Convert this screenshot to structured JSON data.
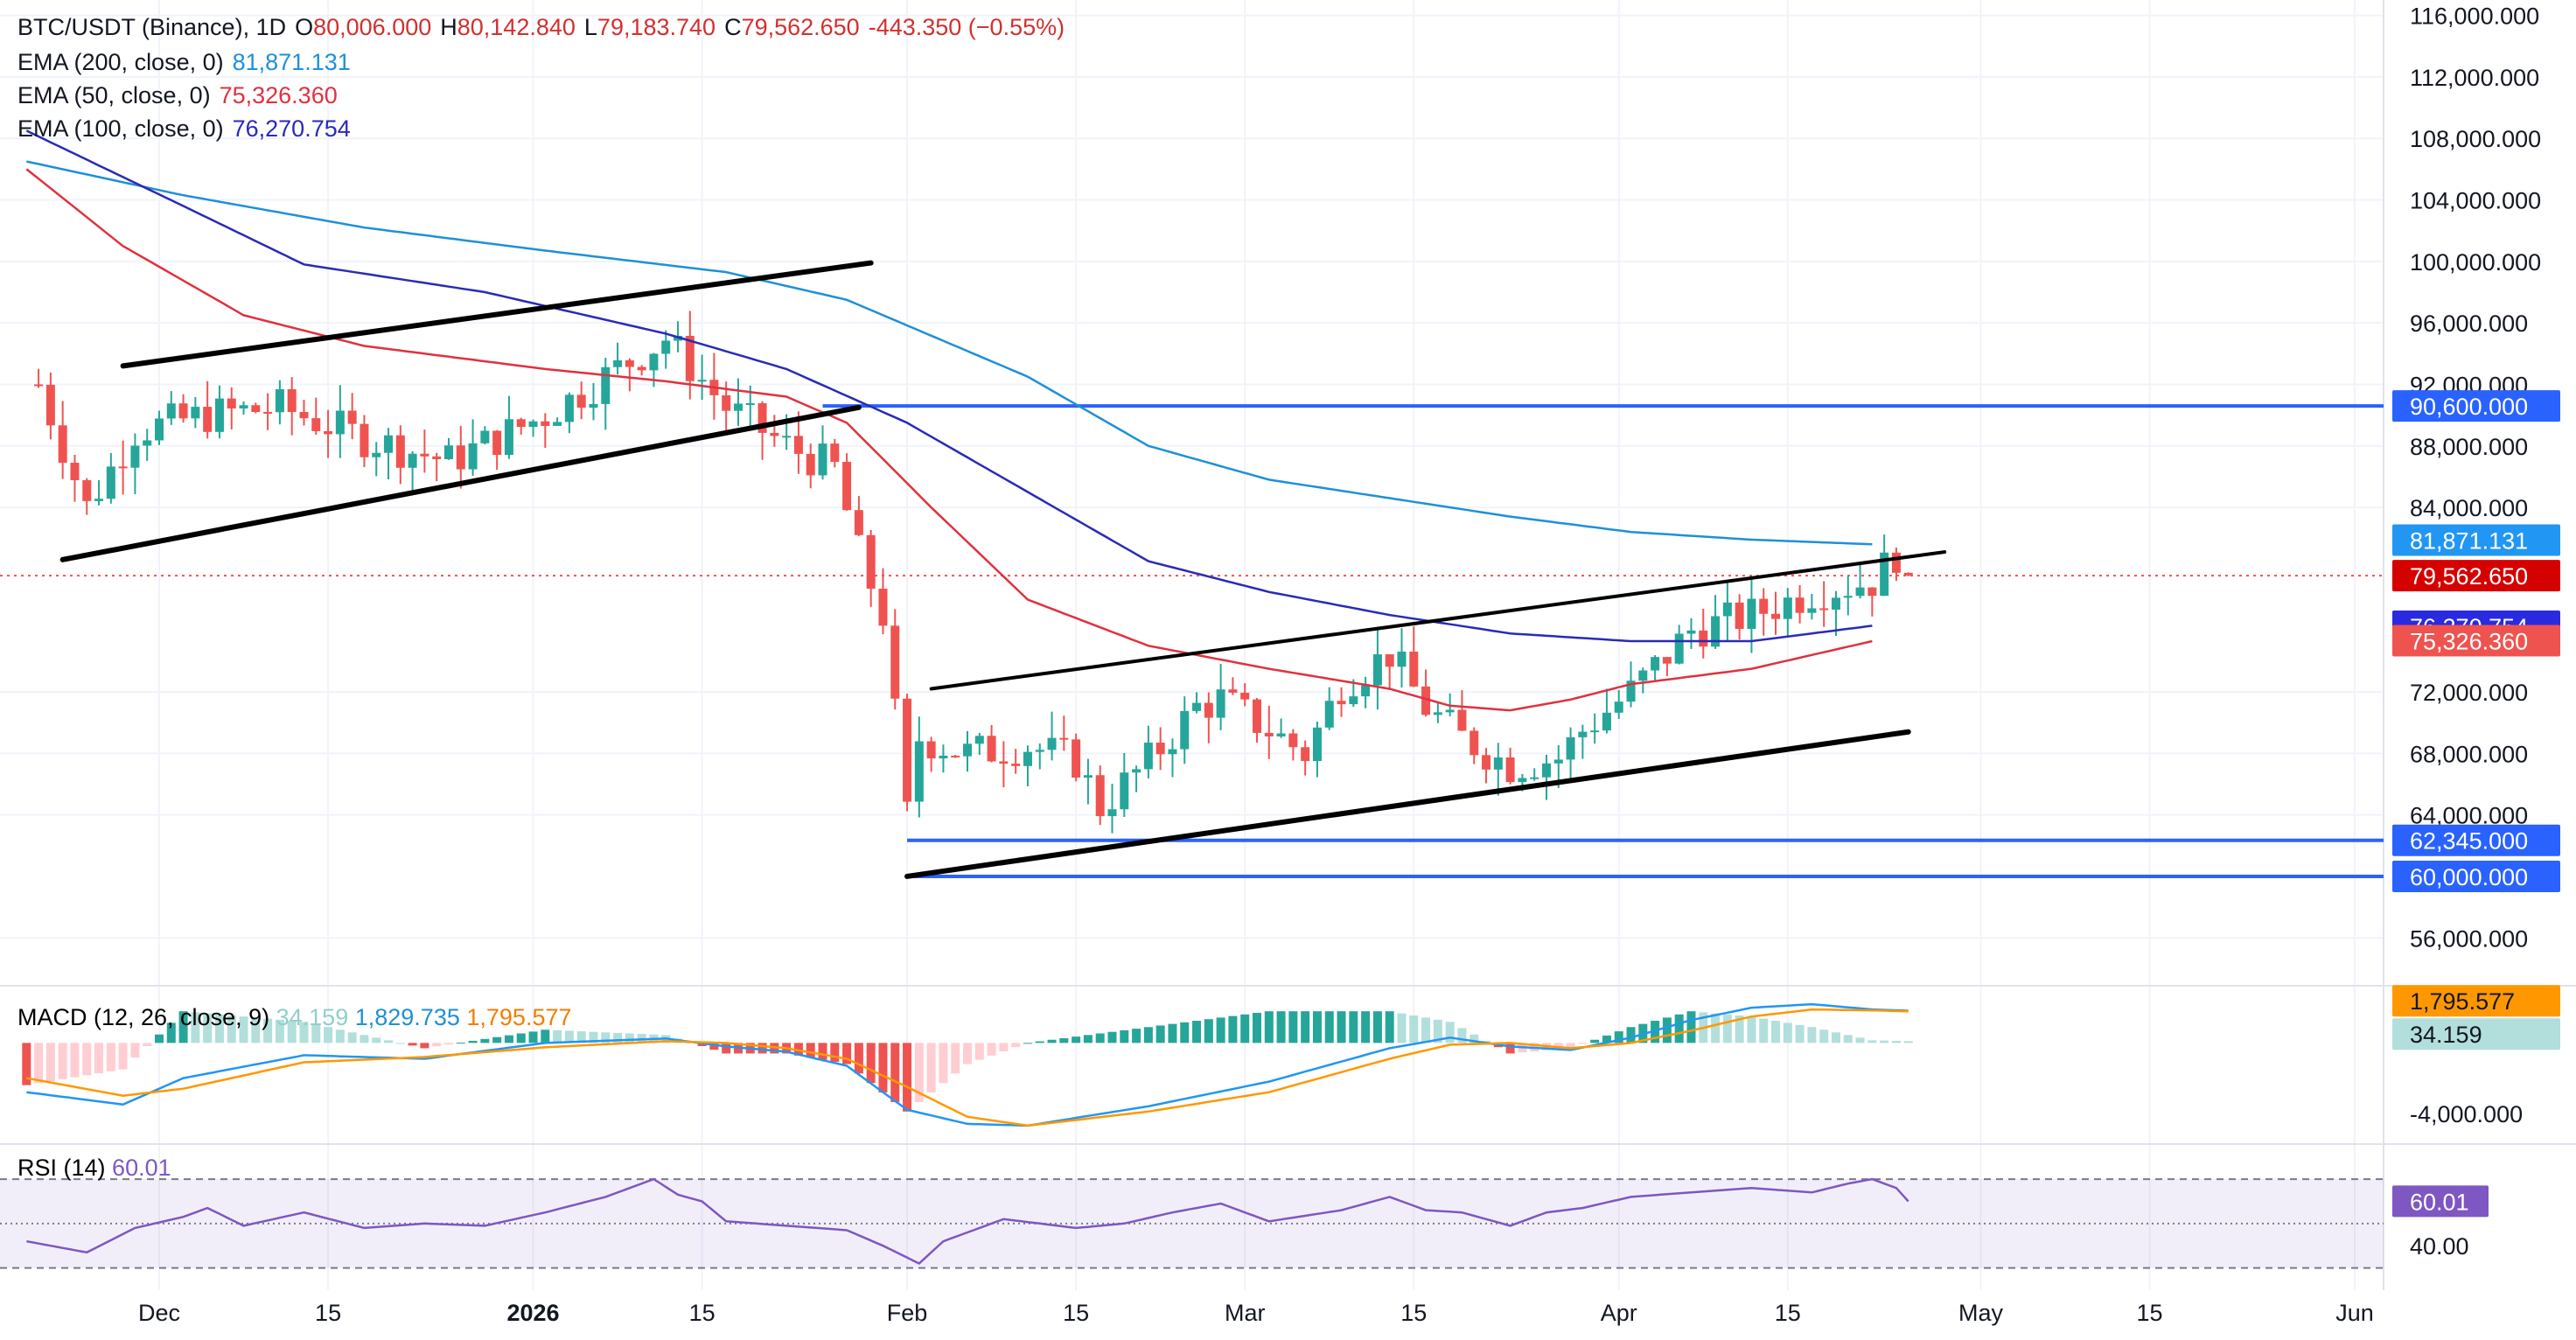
{
  "header": {
    "symbol": "BTC/USDT (Binance), 1D",
    "open_label": "O",
    "open": "80,006.000",
    "high_label": "H",
    "high": "80,142.840",
    "low_label": "L",
    "low": "79,183.740",
    "close_label": "C",
    "close": "79,562.650",
    "change": "-443.350 (−0.55%)"
  },
  "indicators": [
    {
      "label": "EMA (200, close, 0)",
      "value": "81,871.131",
      "color": "#1e90d8"
    },
    {
      "label": "EMA (50, close, 0)",
      "value": "75,326.360",
      "color": "#e0313f"
    },
    {
      "label": "EMA (100, close, 0)",
      "value": "76,270.754",
      "color": "#2a2ab8"
    }
  ],
  "macd": {
    "label": "MACD (12, 26, close, 9)",
    "hist": "34.159",
    "macd": "1,829.735",
    "signal": "1,795.577"
  },
  "rsi": {
    "label": "RSI (14)",
    "value": "60.01"
  },
  "colors": {
    "up": "#26a69a",
    "down": "#ef5350",
    "ema200": "#1e90d8",
    "ema50": "#e0313f",
    "ema100": "#2a2ab8",
    "hline": "#2962ff",
    "text": "#131722",
    "axis": "#5d606b"
  },
  "chart_data": {
    "type": "candlestick",
    "price_axis": {
      "ylim": [
        53000,
        117000
      ],
      "ticks": [
        "116,000.000",
        "112,000.000",
        "108,000.000",
        "104,000.000",
        "100,000.000",
        "96,000.000",
        "92,000.000",
        "88,000.000",
        "84,000.000",
        "72,000.000",
        "68,000.000",
        "64,000.000",
        "56,000.000"
      ],
      "tick_values": [
        116000,
        112000,
        108000,
        104000,
        100000,
        96000,
        92000,
        88000,
        84000,
        72000,
        68000,
        64000,
        56000
      ]
    },
    "x_axis": {
      "labels": [
        "Dec",
        "15",
        "2026",
        "15",
        "Feb",
        "15",
        "Mar",
        "15",
        "Apr",
        "15",
        "May",
        "15",
        "Jun"
      ],
      "label_day": [
        8,
        22,
        39,
        53,
        70,
        84,
        98,
        112,
        129,
        143,
        159,
        173,
        190
      ]
    },
    "horizontal_lines": [
      {
        "price": 90600,
        "label": "90,600.000",
        "start_day": 63
      },
      {
        "price": 62345,
        "label": "62,345.000",
        "start_day": 70
      },
      {
        "price": 60000,
        "label": "60,000.000",
        "start_day": 70
      }
    ],
    "trendlines": [
      {
        "from": [
          5,
          93200
        ],
        "to": [
          67,
          99900
        ],
        "width": 6
      },
      {
        "from": [
          0,
          80600
        ],
        "to": [
          66,
          90500
        ],
        "width": 6
      },
      {
        "from": [
          72,
          72200
        ],
        "to": [
          156,
          81100
        ],
        "width": 4
      },
      {
        "from": [
          70,
          60000
        ],
        "to": [
          153,
          69400
        ],
        "width": 6
      }
    ],
    "last_price": {
      "price": 79562.65,
      "label": "79,562.650"
    },
    "price_labels": [
      {
        "price": 81871.131,
        "label": "81,871.131",
        "series": "ema200"
      },
      {
        "price": 76270.754,
        "label": "76,270.754",
        "series": "ema100"
      },
      {
        "price": 75326.36,
        "label": "75,326.360",
        "series": "ema50"
      }
    ],
    "ema200": [
      [
        -3,
        106500
      ],
      [
        10,
        104300
      ],
      [
        25,
        102200
      ],
      [
        40,
        100700
      ],
      [
        55,
        99300
      ],
      [
        65,
        97500
      ],
      [
        80,
        92500
      ],
      [
        90,
        88000
      ],
      [
        100,
        85800
      ],
      [
        110,
        84600
      ],
      [
        120,
        83400
      ],
      [
        130,
        82400
      ],
      [
        140,
        81900
      ],
      [
        150,
        81600
      ]
    ],
    "ema100": [
      [
        -3,
        108500
      ],
      [
        10,
        103600
      ],
      [
        20,
        99800
      ],
      [
        35,
        98000
      ],
      [
        50,
        95300
      ],
      [
        60,
        93000
      ],
      [
        70,
        89500
      ],
      [
        80,
        85000
      ],
      [
        90,
        80500
      ],
      [
        100,
        78500
      ],
      [
        110,
        77000
      ],
      [
        120,
        75800
      ],
      [
        130,
        75300
      ],
      [
        140,
        75300
      ],
      [
        150,
        76300
      ]
    ],
    "ema50": [
      [
        -3,
        106000
      ],
      [
        5,
        101000
      ],
      [
        15,
        96500
      ],
      [
        25,
        94500
      ],
      [
        40,
        93000
      ],
      [
        50,
        92200
      ],
      [
        60,
        91200
      ],
      [
        65,
        89500
      ],
      [
        72,
        84000
      ],
      [
        80,
        78000
      ],
      [
        90,
        75000
      ],
      [
        100,
        73500
      ],
      [
        110,
        72200
      ],
      [
        115,
        71100
      ],
      [
        120,
        70800
      ],
      [
        125,
        71500
      ],
      [
        130,
        72500
      ],
      [
        140,
        73500
      ],
      [
        150,
        75300
      ]
    ],
    "candle_trend": [
      [
        -2,
        92000
      ],
      [
        2,
        84000
      ],
      [
        6,
        89000
      ],
      [
        12,
        90000
      ],
      [
        18,
        90500
      ],
      [
        25,
        88500
      ],
      [
        32,
        87000
      ],
      [
        40,
        90000
      ],
      [
        45,
        92500
      ],
      [
        50,
        95000
      ],
      [
        55,
        90500
      ],
      [
        60,
        88000
      ],
      [
        64,
        86500
      ],
      [
        66,
        81000
      ],
      [
        68,
        77000
      ],
      [
        70,
        64000
      ],
      [
        71,
        69000
      ],
      [
        75,
        68000
      ],
      [
        80,
        68500
      ],
      [
        84,
        67500
      ],
      [
        86,
        64500
      ],
      [
        90,
        67500
      ],
      [
        94,
        71000
      ],
      [
        96,
        71500
      ],
      [
        100,
        69500
      ],
      [
        103,
        68000
      ],
      [
        106,
        72500
      ],
      [
        110,
        74500
      ],
      [
        113,
        71000
      ],
      [
        116,
        69000
      ],
      [
        120,
        67200
      ],
      [
        124,
        67700
      ],
      [
        126,
        69500
      ],
      [
        130,
        72000
      ],
      [
        135,
        76000
      ],
      [
        140,
        77000
      ],
      [
        145,
        78500
      ],
      [
        150,
        79200
      ],
      [
        152,
        81000
      ],
      [
        153,
        79600
      ]
    ],
    "macd_line": [
      [
        -3,
        -2800
      ],
      [
        5,
        -3500
      ],
      [
        10,
        -2000
      ],
      [
        20,
        -700
      ],
      [
        30,
        -900
      ],
      [
        40,
        0
      ],
      [
        50,
        250
      ],
      [
        55,
        -200
      ],
      [
        60,
        -500
      ],
      [
        65,
        -1300
      ],
      [
        70,
        -3800
      ],
      [
        75,
        -4600
      ],
      [
        80,
        -4700
      ],
      [
        90,
        -3600
      ],
      [
        100,
        -2200
      ],
      [
        110,
        -300
      ],
      [
        115,
        300
      ],
      [
        120,
        -200
      ],
      [
        125,
        -400
      ],
      [
        130,
        300
      ],
      [
        135,
        1300
      ],
      [
        140,
        2000
      ],
      [
        145,
        2200
      ],
      [
        150,
        1900
      ],
      [
        153,
        1830
      ]
    ],
    "macd_signal": [
      [
        -3,
        -2000
      ],
      [
        5,
        -3000
      ],
      [
        10,
        -2600
      ],
      [
        20,
        -1100
      ],
      [
        30,
        -800
      ],
      [
        40,
        -250
      ],
      [
        50,
        100
      ],
      [
        55,
        0
      ],
      [
        60,
        -300
      ],
      [
        65,
        -900
      ],
      [
        70,
        -2500
      ],
      [
        75,
        -4200
      ],
      [
        80,
        -4700
      ],
      [
        90,
        -3900
      ],
      [
        100,
        -2800
      ],
      [
        110,
        -900
      ],
      [
        115,
        -100
      ],
      [
        120,
        0
      ],
      [
        125,
        -300
      ],
      [
        130,
        0
      ],
      [
        135,
        700
      ],
      [
        140,
        1500
      ],
      [
        145,
        1900
      ],
      [
        150,
        1850
      ],
      [
        153,
        1796
      ]
    ],
    "macd_ylim": [
      -5600,
      3200
    ],
    "macd_ticks": [
      {
        "value": -4000,
        "label": "-4,000.000"
      }
    ],
    "macd_last_labels": [
      {
        "value": 1795.577,
        "label": "1,795.577"
      },
      {
        "value": 34.159,
        "label": "34.159"
      }
    ],
    "rsi_line": [
      [
        -3,
        42
      ],
      [
        0,
        39
      ],
      [
        2,
        37
      ],
      [
        6,
        48
      ],
      [
        10,
        53
      ],
      [
        12,
        57
      ],
      [
        15,
        49
      ],
      [
        20,
        55
      ],
      [
        25,
        48
      ],
      [
        30,
        50
      ],
      [
        35,
        49
      ],
      [
        40,
        55
      ],
      [
        45,
        62
      ],
      [
        49,
        70
      ],
      [
        51,
        63
      ],
      [
        53,
        60
      ],
      [
        55,
        51
      ],
      [
        60,
        49
      ],
      [
        65,
        47
      ],
      [
        68,
        40
      ],
      [
        71,
        32
      ],
      [
        73,
        42
      ],
      [
        78,
        52
      ],
      [
        84,
        48
      ],
      [
        88,
        50
      ],
      [
        92,
        55
      ],
      [
        96,
        59
      ],
      [
        100,
        51
      ],
      [
        106,
        56
      ],
      [
        110,
        62
      ],
      [
        113,
        56
      ],
      [
        116,
        55
      ],
      [
        120,
        49
      ],
      [
        123,
        55
      ],
      [
        126,
        57
      ],
      [
        130,
        62
      ],
      [
        135,
        64
      ],
      [
        140,
        66
      ],
      [
        145,
        64
      ],
      [
        148,
        68
      ],
      [
        150,
        70
      ],
      [
        152,
        66
      ],
      [
        153,
        60
      ]
    ],
    "rsi_ylim": [
      20,
      85
    ],
    "rsi_levels": [
      70,
      50,
      30
    ],
    "rsi_ticks": [
      {
        "value": 40,
        "label": "40.00"
      }
    ],
    "day_range": [
      -3,
      200
    ]
  }
}
